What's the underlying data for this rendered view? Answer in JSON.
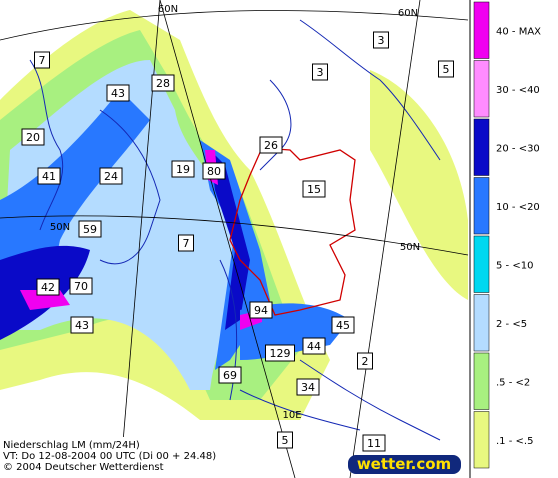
{
  "map": {
    "labels": [
      7,
      3,
      3,
      5,
      43,
      28,
      20,
      26,
      41,
      24,
      19,
      80,
      15,
      59,
      7,
      42,
      70,
      43,
      94,
      45,
      129,
      44,
      2,
      69,
      34,
      5,
      11
    ],
    "grid_labels": [
      "60N",
      "60N",
      "50N",
      "50N",
      "10E"
    ]
  },
  "legend": [
    {
      "label": "40 - MAX",
      "color": "#f000f0"
    },
    {
      "label": "30 - <40",
      "color": "#ff8cff"
    },
    {
      "label": "20 - <30",
      "color": "#0a0ac8"
    },
    {
      "label": "10 - <20",
      "color": "#2878ff"
    },
    {
      "label": "5 - <10",
      "color": "#00d8f0"
    },
    {
      "label": "2 - <5",
      "color": "#b4dcff"
    },
    {
      "label": ".5 - <2",
      "color": "#a8f080"
    },
    {
      "label": ".1 - <.5",
      "color": "#e8f880"
    }
  ],
  "caption": [
    "Niederschlag LM (mm/24H)",
    "VT: Do 12-08-2004 00 UTC (Di 00 + 24.48)",
    "© 2004 Deutscher Wetterdienst"
  ],
  "logo": "wetter.com"
}
